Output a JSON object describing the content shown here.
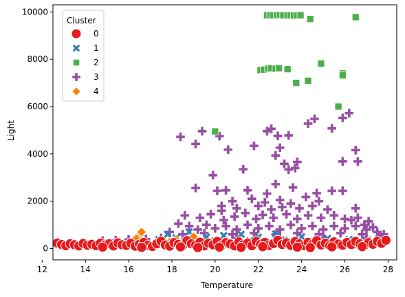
{
  "chart_data": {
    "type": "scatter",
    "title": "",
    "xlabel": "Temperature",
    "ylabel": "Light",
    "xlim": [
      12.5,
      28.4
    ],
    "ylim": [
      -480,
      10300
    ],
    "x_ticks": [
      12,
      14,
      16,
      18,
      20,
      22,
      24,
      26,
      28
    ],
    "y_ticks": [
      0,
      2000,
      4000,
      6000,
      8000,
      10000
    ],
    "grid": false,
    "legend": {
      "title": "Cluster",
      "placement": "top-left",
      "entries": [
        {
          "label": "0",
          "marker": "circle",
          "color": "#e41a1c"
        },
        {
          "label": "1",
          "marker": "x",
          "color": "#377eb8"
        },
        {
          "label": "2",
          "marker": "square",
          "color": "#4daf4a"
        },
        {
          "label": "3",
          "marker": "plus",
          "color": "#984ea3"
        },
        {
          "label": "4",
          "marker": "diamond",
          "color": "#ff7f00"
        }
      ]
    },
    "series": [
      {
        "name": "0",
        "marker": "circle",
        "color": "#e41a1c",
        "points": [
          [
            12.7,
            230
          ],
          [
            12.9,
            170
          ],
          [
            13.1,
            120
          ],
          [
            13.3,
            200
          ],
          [
            13.5,
            160
          ],
          [
            13.7,
            110
          ],
          [
            13.9,
            210
          ],
          [
            14.1,
            140
          ],
          [
            14.3,
            180
          ],
          [
            14.5,
            120
          ],
          [
            14.7,
            230
          ],
          [
            14.9,
            150
          ],
          [
            15.1,
            200
          ],
          [
            15.3,
            110
          ],
          [
            15.5,
            240
          ],
          [
            15.7,
            160
          ],
          [
            15.9,
            130
          ],
          [
            16.1,
            220
          ],
          [
            16.3,
            100
          ],
          [
            16.5,
            180
          ],
          [
            16.7,
            260
          ],
          [
            16.9,
            140
          ],
          [
            17.1,
            90
          ],
          [
            17.3,
            200
          ],
          [
            17.5,
            310
          ],
          [
            17.7,
            150
          ],
          [
            17.9,
            100
          ],
          [
            18.1,
            250
          ],
          [
            18.3,
            180
          ],
          [
            18.5,
            120
          ],
          [
            18.7,
            330
          ],
          [
            18.9,
            200
          ],
          [
            19.1,
            140
          ],
          [
            19.3,
            270
          ],
          [
            19.5,
            110
          ],
          [
            19.7,
            220
          ],
          [
            19.9,
            160
          ],
          [
            20.1,
            300
          ],
          [
            20.3,
            130
          ],
          [
            20.5,
            250
          ],
          [
            20.7,
            190
          ],
          [
            20.9,
            110
          ],
          [
            21.1,
            280
          ],
          [
            21.3,
            160
          ],
          [
            21.5,
            230
          ],
          [
            21.7,
            120
          ],
          [
            21.9,
            300
          ],
          [
            22.1,
            180
          ],
          [
            22.3,
            260
          ],
          [
            22.5,
            130
          ],
          [
            22.7,
            210
          ],
          [
            22.9,
            350
          ],
          [
            23.1,
            170
          ],
          [
            23.3,
            240
          ],
          [
            23.5,
            130
          ],
          [
            23.7,
            290
          ],
          [
            23.9,
            200
          ],
          [
            24.1,
            120
          ],
          [
            24.3,
            260
          ],
          [
            24.5,
            180
          ],
          [
            24.7,
            330
          ],
          [
            24.9,
            150
          ],
          [
            25.1,
            230
          ],
          [
            25.3,
            120
          ],
          [
            25.5,
            280
          ],
          [
            25.7,
            190
          ],
          [
            25.9,
            140
          ],
          [
            26.1,
            260
          ],
          [
            26.3,
            170
          ],
          [
            26.5,
            300
          ],
          [
            26.7,
            200
          ],
          [
            26.9,
            130
          ],
          [
            27.1,
            250
          ],
          [
            27.3,
            180
          ],
          [
            27.5,
            300
          ],
          [
            27.7,
            220
          ],
          [
            27.9,
            350
          ],
          [
            14.8,
            60
          ],
          [
            16.6,
            50
          ],
          [
            18.4,
            70
          ],
          [
            20.2,
            60
          ],
          [
            22.2,
            80
          ],
          [
            23.8,
            60
          ],
          [
            25.4,
            70
          ],
          [
            26.8,
            80
          ],
          [
            19.2,
            40
          ],
          [
            21.2,
            50
          ],
          [
            24.4,
            40
          ]
        ]
      },
      {
        "name": "1",
        "marker": "x",
        "color": "#377eb8",
        "points": [
          [
            17.2,
            120
          ],
          [
            17.4,
            380
          ],
          [
            17.6,
            240
          ],
          [
            17.8,
            600
          ],
          [
            18.0,
            180
          ],
          [
            18.2,
            450
          ],
          [
            18.4,
            300
          ],
          [
            18.8,
            700
          ],
          [
            19.2,
            250
          ],
          [
            19.6,
            480
          ],
          [
            20.0,
            320
          ],
          [
            20.4,
            550
          ],
          [
            20.8,
            200
          ],
          [
            21.2,
            600
          ],
          [
            21.6,
            330
          ],
          [
            22.0,
            480
          ],
          [
            22.4,
            250
          ],
          [
            22.8,
            620
          ],
          [
            23.2,
            350
          ],
          [
            23.6,
            200
          ],
          [
            24.0,
            500
          ],
          [
            24.6,
            280
          ],
          [
            25.2,
            430
          ],
          [
            25.8,
            180
          ],
          [
            26.2,
            380
          ],
          [
            26.6,
            150
          ],
          [
            27.0,
            260
          ]
        ]
      },
      {
        "name": "2",
        "marker": "square",
        "color": "#4daf4a",
        "points": [
          [
            22.4,
            9860
          ],
          [
            22.55,
            9860
          ],
          [
            22.7,
            9860
          ],
          [
            22.85,
            9860
          ],
          [
            23.0,
            9870
          ],
          [
            23.15,
            9860
          ],
          [
            23.35,
            9850
          ],
          [
            23.5,
            9860
          ],
          [
            23.65,
            9850
          ],
          [
            23.8,
            9850
          ],
          [
            23.95,
            9860
          ],
          [
            24.4,
            9720
          ],
          [
            24.4,
            9700
          ],
          [
            26.5,
            9780
          ],
          [
            22.1,
            7540
          ],
          [
            22.25,
            7560
          ],
          [
            22.45,
            7600
          ],
          [
            22.6,
            7620
          ],
          [
            22.8,
            7600
          ],
          [
            22.95,
            7620
          ],
          [
            23.35,
            7580
          ],
          [
            25.9,
            7400
          ],
          [
            25.9,
            7320
          ],
          [
            24.9,
            7820
          ],
          [
            24.3,
            7090
          ],
          [
            23.75,
            7000
          ],
          [
            25.7,
            6000
          ],
          [
            20.0,
            4950
          ]
        ]
      },
      {
        "name": "3",
        "marker": "plus",
        "color": "#984ea3",
        "points": [
          [
            18.4,
            4720
          ],
          [
            19.1,
            4420
          ],
          [
            19.4,
            4960
          ],
          [
            20.2,
            4750
          ],
          [
            20.6,
            4180
          ],
          [
            21.8,
            4340
          ],
          [
            22.4,
            4960
          ],
          [
            22.6,
            5060
          ],
          [
            22.9,
            4760
          ],
          [
            23.0,
            4260
          ],
          [
            23.4,
            4780
          ],
          [
            22.8,
            3930
          ],
          [
            23.2,
            3580
          ],
          [
            23.4,
            3340
          ],
          [
            23.8,
            3660
          ],
          [
            23.7,
            3400
          ],
          [
            21.3,
            3350
          ],
          [
            19.9,
            3100
          ],
          [
            24.3,
            5280
          ],
          [
            24.6,
            5480
          ],
          [
            25.4,
            5080
          ],
          [
            25.9,
            5520
          ],
          [
            26.2,
            5720
          ],
          [
            26.5,
            4160
          ],
          [
            25.9,
            3680
          ],
          [
            26.6,
            3680
          ],
          [
            19.1,
            2560
          ],
          [
            20.1,
            2440
          ],
          [
            20.5,
            2460
          ],
          [
            21.5,
            2460
          ],
          [
            22.8,
            2720
          ],
          [
            22.4,
            2320
          ],
          [
            23.6,
            2580
          ],
          [
            24.2,
            2180
          ],
          [
            24.7,
            2340
          ],
          [
            25.4,
            2440
          ],
          [
            25.9,
            2440
          ],
          [
            20.8,
            2000
          ],
          [
            21.7,
            2100
          ],
          [
            22.3,
            1950
          ],
          [
            23.0,
            2050
          ],
          [
            23.5,
            1900
          ],
          [
            24.8,
            2000
          ],
          [
            26.5,
            1700
          ],
          [
            20.3,
            1600
          ],
          [
            21.0,
            1700
          ],
          [
            22.6,
            1650
          ],
          [
            23.9,
            1700
          ],
          [
            25.2,
            1650
          ],
          [
            19.3,
            1300
          ],
          [
            19.8,
            1450
          ],
          [
            20.4,
            1200
          ],
          [
            20.9,
            1350
          ],
          [
            21.4,
            1500
          ],
          [
            21.9,
            1250
          ],
          [
            22.2,
            1420
          ],
          [
            22.7,
            1300
          ],
          [
            23.3,
            1450
          ],
          [
            23.8,
            1250
          ],
          [
            24.3,
            1400
          ],
          [
            24.9,
            1300
          ],
          [
            25.5,
            1400
          ],
          [
            26.0,
            1250
          ],
          [
            26.6,
            1300
          ],
          [
            27.1,
            1150
          ],
          [
            18.6,
            1400
          ],
          [
            18.3,
            1050
          ],
          [
            18.8,
            950
          ],
          [
            19.2,
            800
          ],
          [
            19.6,
            1000
          ],
          [
            20.0,
            850
          ],
          [
            20.5,
            950
          ],
          [
            21.0,
            800
          ],
          [
            21.5,
            1000
          ],
          [
            22.0,
            850
          ],
          [
            22.5,
            950
          ],
          [
            23.0,
            800
          ],
          [
            23.5,
            1000
          ],
          [
            24.0,
            850
          ],
          [
            24.5,
            950
          ],
          [
            25.0,
            800
          ],
          [
            25.5,
            950
          ],
          [
            26.0,
            850
          ],
          [
            26.5,
            950
          ],
          [
            27.0,
            800
          ],
          [
            27.5,
            700
          ],
          [
            17.9,
            700
          ],
          [
            18.5,
            600
          ],
          [
            19.5,
            650
          ],
          [
            20.8,
            600
          ],
          [
            21.8,
            650
          ],
          [
            22.8,
            600
          ],
          [
            23.8,
            650
          ],
          [
            24.8,
            600
          ],
          [
            25.8,
            650
          ],
          [
            26.8,
            600
          ],
          [
            27.6,
            500
          ],
          [
            17.5,
            450
          ],
          [
            16.8,
            400
          ],
          [
            16.0,
            380
          ],
          [
            15.4,
            350
          ],
          [
            14.8,
            330
          ],
          [
            19.0,
            450
          ],
          [
            21.0,
            450
          ],
          [
            23.0,
            450
          ],
          [
            25.0,
            450
          ],
          [
            27.0,
            450
          ],
          [
            20.3,
            1800
          ],
          [
            22.0,
            1800
          ],
          [
            23.1,
            1750
          ],
          [
            24.5,
            1800
          ],
          [
            26.3,
            1200
          ],
          [
            26.9,
            1000
          ],
          [
            27.3,
            900
          ],
          [
            27.8,
            600
          ]
        ]
      },
      {
        "name": "4",
        "marker": "diamond",
        "color": "#ff7f00",
        "points": [
          [
            16.2,
            100
          ],
          [
            16.3,
            250
          ],
          [
            16.4,
            180
          ],
          [
            16.5,
            550
          ],
          [
            16.6,
            700
          ],
          [
            16.7,
            300
          ],
          [
            16.8,
            150
          ],
          [
            16.45,
            400
          ],
          [
            16.15,
            200
          ],
          [
            16.35,
            420
          ],
          [
            16.55,
            260
          ],
          [
            19.0,
            500
          ],
          [
            18.2,
            380
          ],
          [
            17.9,
            280
          ]
        ]
      }
    ]
  }
}
